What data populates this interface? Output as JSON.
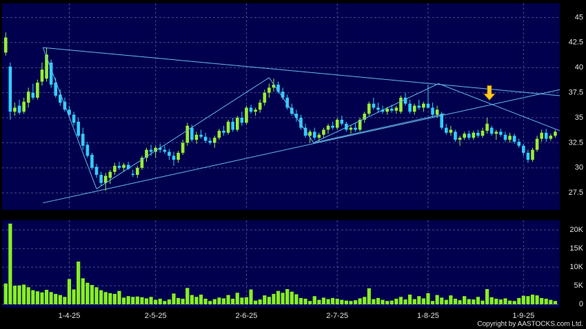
{
  "chart_data": {
    "type": "candlestick",
    "xlim": [
      -0.8,
      122
    ],
    "xticks": [
      {
        "value": 14,
        "label": "1-4-25"
      },
      {
        "value": 33,
        "label": "2-5-25"
      },
      {
        "value": 53,
        "label": "2-6-25"
      },
      {
        "value": 73,
        "label": "2-7-25"
      },
      {
        "value": 93,
        "label": "1-8-25"
      },
      {
        "value": 114,
        "label": "1-9-25"
      }
    ],
    "ylim": [
      25.8,
      46.4
    ],
    "yticks": [
      27.5,
      30,
      32.5,
      35,
      37.5,
      40,
      42.5,
      45
    ],
    "grid": true,
    "up_color": "#99ee33",
    "down_color": "#33ccff",
    "ohlc": [
      [
        41.5,
        43.5,
        41.2,
        43.0
      ],
      [
        40.1,
        40.5,
        34.8,
        35.6
      ],
      [
        35.6,
        36.5,
        35.2,
        36.0
      ],
      [
        36.2,
        36.8,
        35.3,
        35.5
      ],
      [
        35.6,
        37.0,
        35.4,
        36.6
      ],
      [
        36.5,
        38.0,
        36.0,
        37.6
      ],
      [
        37.5,
        38.4,
        36.8,
        37.0
      ],
      [
        37.0,
        38.8,
        36.8,
        38.5
      ],
      [
        38.6,
        40.5,
        38.2,
        39.8
      ],
      [
        38.9,
        42.0,
        38.6,
        41.3
      ],
      [
        40.5,
        40.8,
        38.0,
        38.3
      ],
      [
        38.5,
        39.0,
        37.0,
        37.2
      ],
      [
        37.3,
        37.8,
        36.2,
        36.5
      ],
      [
        36.6,
        37.0,
        35.6,
        35.8
      ],
      [
        35.8,
        36.2,
        35.0,
        35.3
      ],
      [
        35.3,
        35.6,
        34.2,
        34.5
      ],
      [
        34.6,
        35.0,
        33.0,
        33.2
      ],
      [
        33.4,
        34.0,
        31.8,
        32.2
      ],
      [
        32.3,
        32.6,
        31.0,
        31.2
      ],
      [
        31.3,
        31.5,
        29.8,
        30.0
      ],
      [
        30.1,
        30.4,
        29.0,
        29.3
      ],
      [
        29.3,
        29.6,
        28.2,
        28.5
      ],
      [
        28.5,
        29.5,
        27.7,
        29.2
      ],
      [
        29.0,
        29.8,
        28.4,
        29.6
      ],
      [
        29.6,
        30.5,
        29.3,
        30.2
      ],
      [
        30.2,
        30.6,
        29.8,
        30.0
      ],
      [
        30.0,
        30.5,
        29.6,
        30.3
      ],
      [
        30.3,
        30.6,
        29.8,
        29.9
      ],
      [
        29.4,
        29.8,
        29.1,
        29.3
      ],
      [
        29.3,
        30.2,
        29.0,
        30.0
      ],
      [
        30.0,
        31.2,
        29.8,
        31.0
      ],
      [
        31.0,
        32.0,
        30.6,
        31.8
      ],
      [
        31.8,
        32.3,
        31.2,
        31.6
      ],
      [
        31.6,
        32.2,
        31.0,
        32.0
      ],
      [
        32.0,
        32.4,
        31.5,
        31.8
      ],
      [
        31.8,
        32.2,
        31.4,
        31.6
      ],
      [
        31.6,
        31.9,
        30.8,
        31.2
      ],
      [
        31.2,
        31.6,
        30.2,
        30.8
      ],
      [
        30.8,
        31.7,
        30.5,
        31.5
      ],
      [
        31.5,
        32.8,
        31.3,
        32.5
      ],
      [
        32.5,
        34.5,
        32.2,
        34.2
      ],
      [
        34.0,
        34.3,
        32.6,
        32.8
      ],
      [
        32.8,
        33.6,
        32.4,
        33.3
      ],
      [
        33.3,
        33.8,
        32.9,
        33.1
      ],
      [
        33.1,
        33.5,
        32.5,
        32.7
      ],
      [
        32.7,
        33.0,
        32.3,
        32.5
      ],
      [
        32.5,
        33.2,
        32.0,
        33.0
      ],
      [
        33.0,
        33.9,
        32.8,
        33.7
      ],
      [
        33.7,
        34.2,
        33.2,
        33.5
      ],
      [
        33.5,
        34.8,
        33.3,
        34.6
      ],
      [
        34.6,
        35.0,
        33.6,
        33.8
      ],
      [
        33.8,
        35.2,
        33.6,
        35.0
      ],
      [
        35.0,
        35.6,
        34.2,
        34.5
      ],
      [
        34.5,
        36.2,
        34.3,
        36.0
      ],
      [
        36.0,
        36.3,
        35.4,
        35.6
      ],
      [
        35.6,
        36.0,
        35.2,
        35.8
      ],
      [
        35.8,
        36.8,
        35.5,
        36.5
      ],
      [
        36.5,
        37.8,
        36.2,
        37.5
      ],
      [
        37.5,
        38.4,
        37.0,
        38.0
      ],
      [
        38.0,
        38.9,
        37.6,
        38.3
      ],
      [
        38.3,
        38.6,
        37.4,
        37.6
      ],
      [
        37.6,
        38.0,
        36.8,
        37.0
      ],
      [
        37.0,
        37.3,
        35.8,
        36.0
      ],
      [
        36.0,
        36.4,
        35.2,
        35.4
      ],
      [
        35.4,
        35.8,
        34.6,
        35.0
      ],
      [
        35.0,
        35.3,
        33.8,
        34.0
      ],
      [
        34.0,
        34.4,
        33.0,
        33.2
      ],
      [
        33.2,
        33.8,
        32.5,
        33.6
      ],
      [
        33.6,
        34.0,
        32.8,
        33.0
      ],
      [
        33.0,
        33.5,
        32.6,
        33.3
      ],
      [
        33.3,
        34.0,
        33.0,
        33.8
      ],
      [
        33.8,
        34.4,
        33.4,
        34.2
      ],
      [
        34.2,
        34.6,
        33.8,
        34.0
      ],
      [
        34.0,
        35.0,
        33.8,
        34.8
      ],
      [
        34.8,
        35.2,
        34.2,
        34.4
      ],
      [
        34.4,
        34.6,
        33.6,
        33.8
      ],
      [
        33.8,
        34.2,
        33.4,
        34.0
      ],
      [
        34.0,
        34.5,
        33.6,
        33.8
      ],
      [
        33.8,
        35.0,
        33.6,
        34.8
      ],
      [
        34.8,
        35.6,
        34.5,
        35.4
      ],
      [
        35.4,
        36.6,
        35.2,
        36.4
      ],
      [
        36.4,
        37.0,
        35.8,
        36.0
      ],
      [
        36.0,
        36.5,
        35.5,
        35.8
      ],
      [
        35.8,
        36.2,
        35.4,
        35.6
      ],
      [
        35.6,
        36.1,
        35.3,
        35.9
      ],
      [
        35.9,
        36.3,
        35.5,
        35.7
      ],
      [
        35.7,
        36.2,
        35.4,
        36.0
      ],
      [
        35.6,
        37.2,
        35.4,
        37.0
      ],
      [
        37.0,
        37.5,
        36.2,
        36.4
      ],
      [
        36.4,
        36.8,
        35.4,
        35.6
      ],
      [
        35.6,
        36.4,
        35.3,
        36.2
      ],
      [
        36.2,
        36.8,
        35.8,
        36.0
      ],
      [
        36.0,
        36.6,
        35.6,
        36.4
      ],
      [
        36.4,
        38.3,
        35.9,
        36.0
      ],
      [
        36.0,
        36.5,
        35.0,
        35.3
      ],
      [
        35.3,
        36.2,
        35.0,
        35.8
      ],
      [
        35.4,
        35.6,
        33.8,
        34.0
      ],
      [
        34.0,
        34.4,
        33.3,
        33.5
      ],
      [
        33.5,
        34.2,
        33.2,
        33.8
      ],
      [
        33.6,
        33.8,
        32.6,
        32.8
      ],
      [
        32.8,
        33.2,
        32.2,
        33.0
      ],
      [
        33.0,
        33.6,
        32.8,
        33.4
      ],
      [
        33.4,
        33.7,
        32.8,
        33.0
      ],
      [
        33.0,
        33.7,
        32.8,
        33.5
      ],
      [
        33.5,
        33.8,
        33.0,
        33.2
      ],
      [
        33.2,
        34.0,
        33.0,
        33.7
      ],
      [
        33.7,
        35.0,
        33.4,
        34.4
      ],
      [
        34.0,
        34.2,
        33.2,
        33.4
      ],
      [
        33.4,
        33.8,
        32.8,
        33.6
      ],
      [
        33.6,
        33.9,
        33.1,
        33.3
      ],
      [
        33.3,
        33.6,
        32.6,
        32.8
      ],
      [
        32.8,
        33.5,
        32.5,
        33.2
      ],
      [
        33.2,
        33.4,
        32.4,
        32.6
      ],
      [
        32.6,
        32.9,
        32.0,
        32.2
      ],
      [
        32.2,
        32.4,
        31.2,
        31.5
      ],
      [
        31.5,
        31.8,
        30.5,
        30.8
      ],
      [
        30.8,
        32.0,
        30.6,
        31.8
      ],
      [
        31.8,
        33.2,
        31.6,
        32.9
      ],
      [
        32.9,
        33.8,
        32.6,
        33.5
      ],
      [
        33.5,
        33.9,
        32.6,
        32.9
      ],
      [
        32.9,
        33.4,
        32.7,
        33.2
      ],
      [
        33.2,
        33.8,
        33.0,
        33.6
      ]
    ],
    "trend_color": "#66bbee",
    "trend_lines": [
      [
        8.2,
        42.0,
        122,
        37.2
      ],
      [
        8.2,
        26.5,
        122,
        37.8
      ],
      [
        8.2,
        42.0,
        20,
        27.9
      ],
      [
        20,
        27.9,
        58,
        39.0
      ],
      [
        58,
        39.0,
        67.8,
        32.5
      ],
      [
        67.8,
        32.5,
        95.3,
        38.4
      ],
      [
        95.3,
        38.4,
        122,
        33.7
      ],
      [
        67.8,
        32.5,
        96.7,
        35.4
      ]
    ],
    "marker": {
      "x": 106.5,
      "y": 38.2,
      "color": "#ffcc22"
    },
    "volume": {
      "color": "#88ee22",
      "ylim": [
        -900,
        22600
      ],
      "yticks": [
        0,
        {
          "value": 5000,
          "label": "5K"
        },
        {
          "value": 10000,
          "label": "10K"
        },
        {
          "value": 15000,
          "label": "15K"
        },
        {
          "value": 20000,
          "label": "20K"
        }
      ],
      "values": [
        5600,
        21700,
        5000,
        5100,
        5300,
        4600,
        3800,
        3500,
        3200,
        3900,
        3300,
        2800,
        2500,
        2000,
        6800,
        4000,
        11500,
        7000,
        5800,
        5200,
        4600,
        3800,
        3300,
        3000,
        2800,
        3600,
        1800,
        2200,
        2000,
        2100,
        1900,
        1600,
        2000,
        1200,
        1500,
        900,
        1300,
        2900,
        1700,
        1500,
        4400,
        2500,
        2000,
        2600,
        1500,
        900,
        1400,
        1800,
        1600,
        2500,
        1500,
        3100,
        1800,
        1900,
        4000,
        1000,
        1300,
        2400,
        2000,
        2800,
        3600,
        3100,
        4100,
        3400,
        2700,
        1700,
        1500,
        900,
        2200,
        1200,
        1800,
        1400,
        1700,
        1500,
        1200,
        1000,
        900,
        1100,
        1600,
        2000,
        4300,
        1400,
        1700,
        1200,
        900,
        1000,
        1500,
        2000,
        1300,
        2600,
        1400,
        2200,
        1600,
        3000,
        900,
        2500,
        1800,
        1200,
        2400,
        1500,
        1100,
        2200,
        1400,
        1300,
        2000,
        1000,
        4100,
        1900,
        1500,
        1300,
        1600,
        1000,
        900,
        1700,
        2300,
        2200,
        2600,
        2400,
        1700,
        1500,
        1200,
        900
      ]
    },
    "footer": "Copyright by AASTOCKS.com Ltd."
  }
}
